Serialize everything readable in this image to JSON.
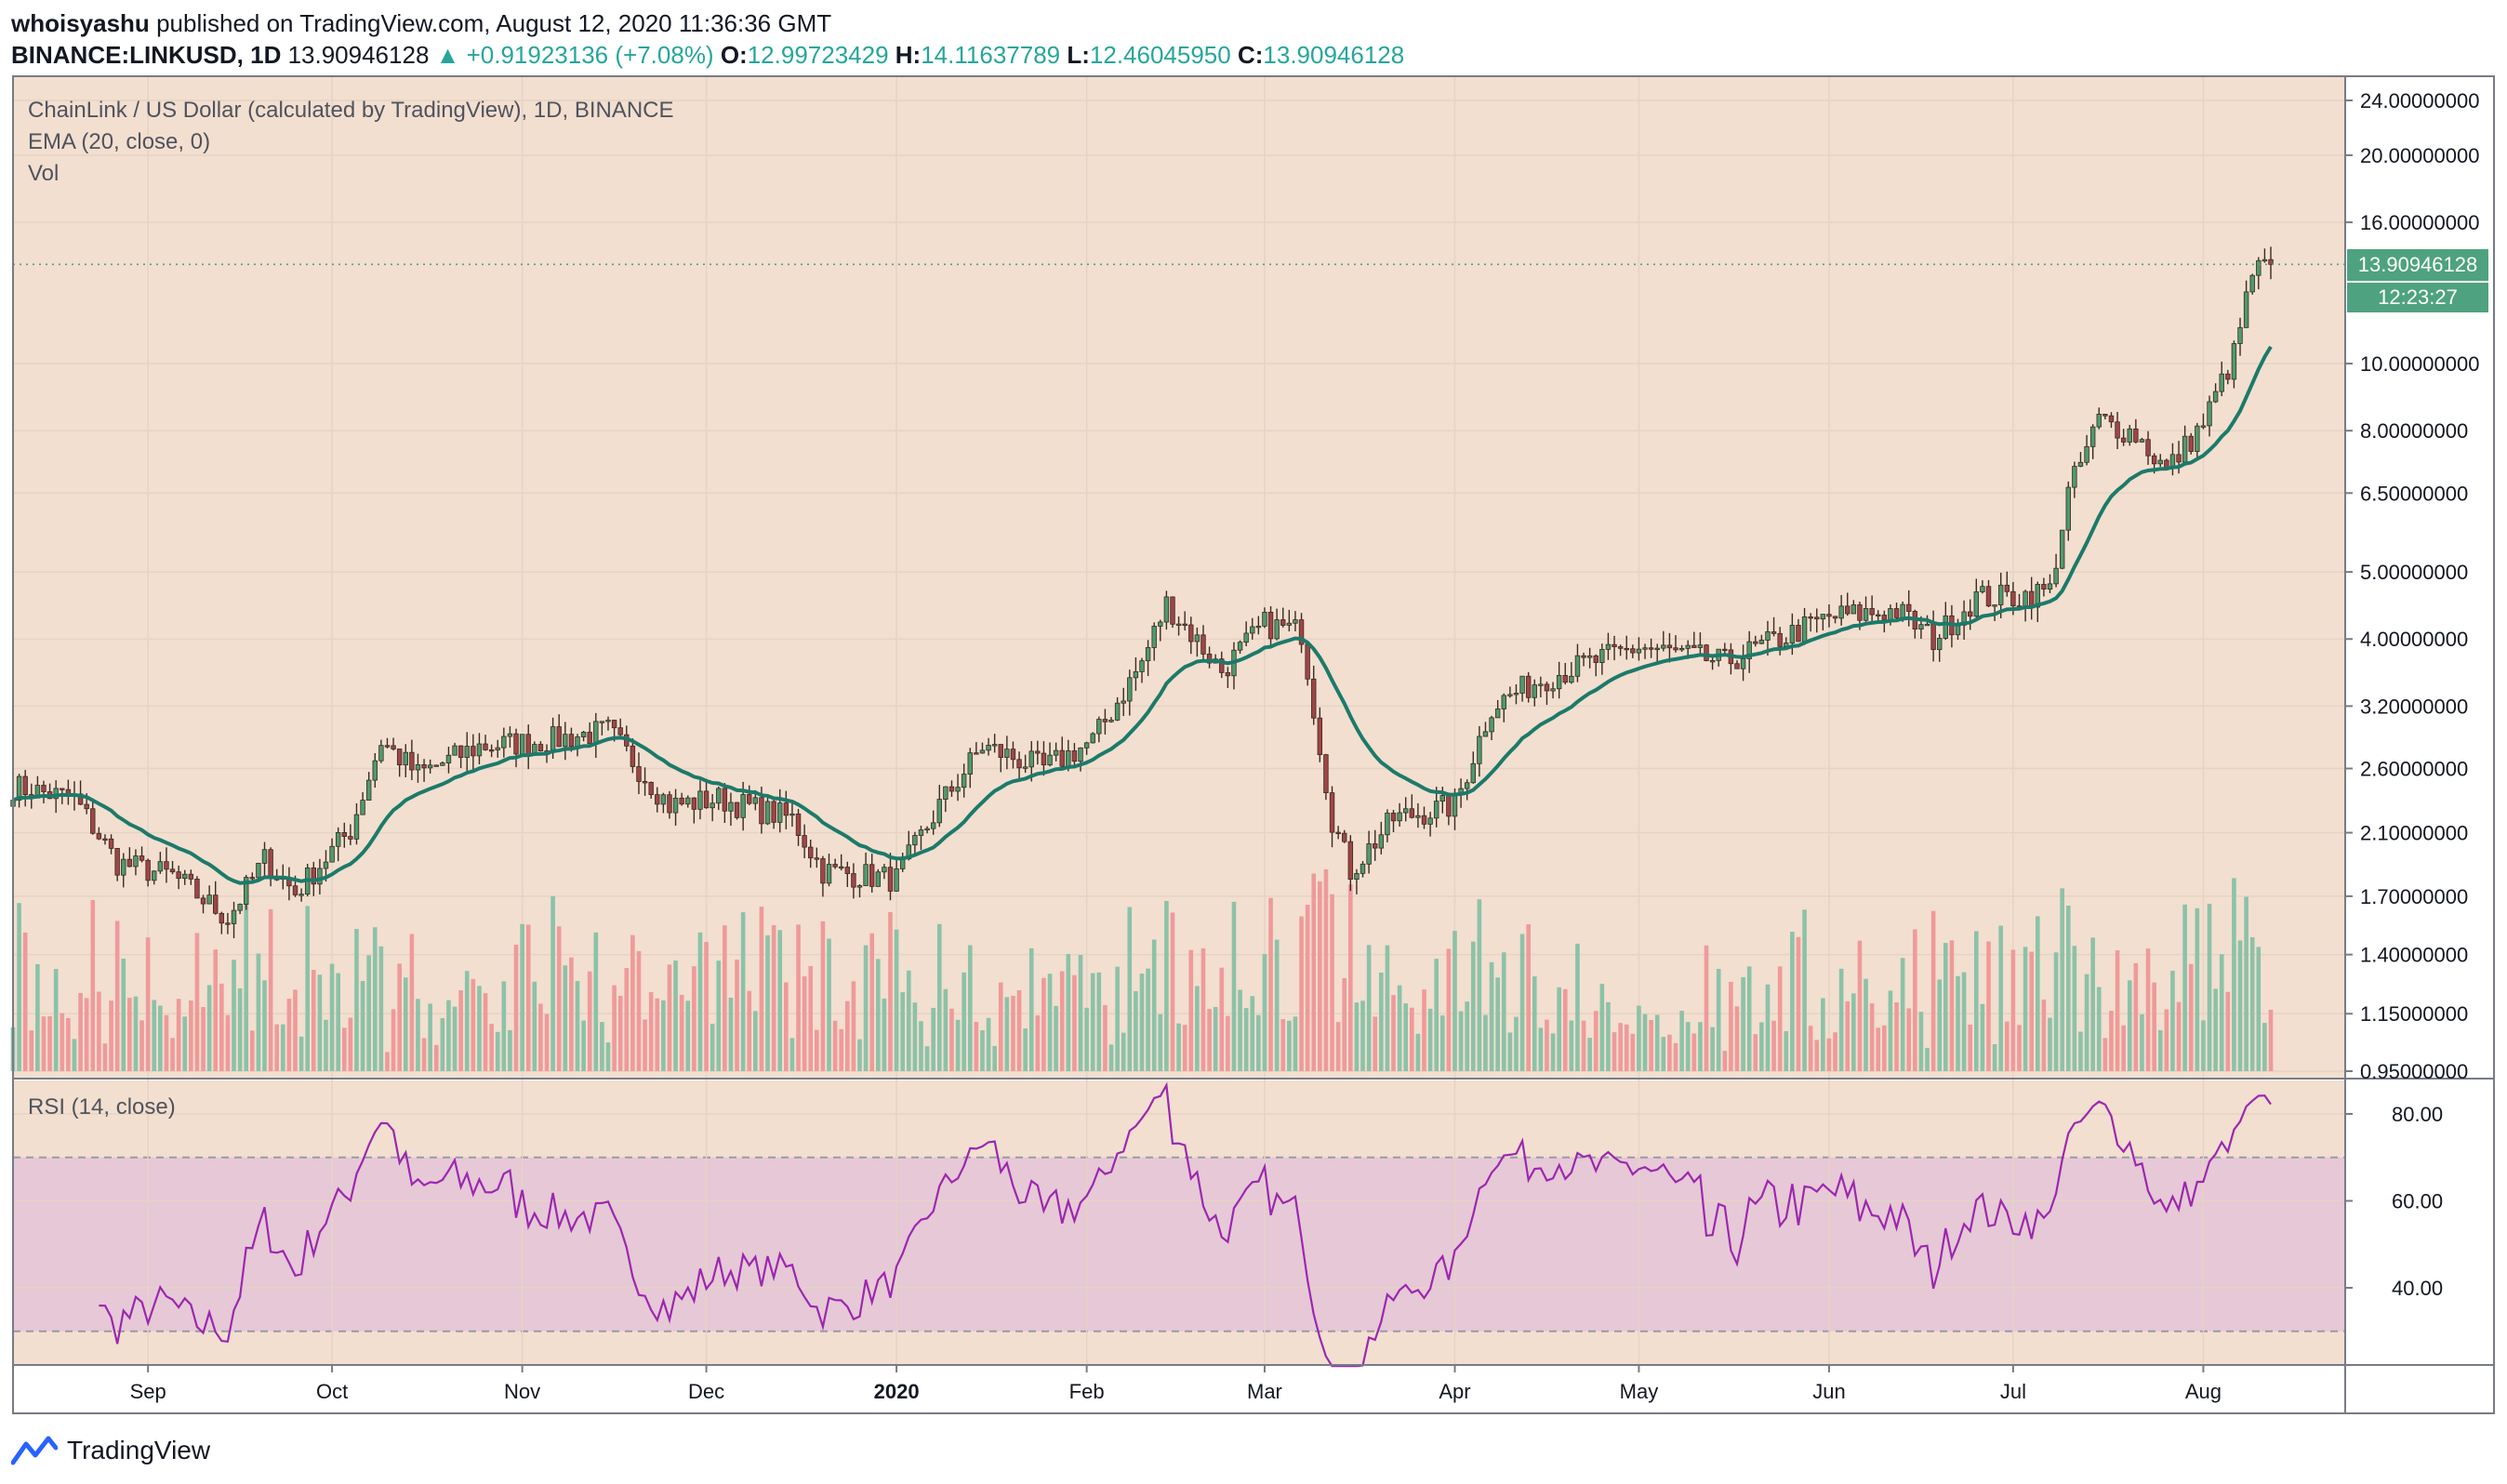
{
  "header": {
    "user": "whoisyashu",
    "published": "published on TradingView.com, August 12, 2020 11:36:36 GMT",
    "symbol": "BINANCE:LINKUSD, 1D",
    "last": "13.90946128",
    "change": "▲ +0.91923136 (+7.08%)",
    "o_label": "O:",
    "o_value": "12.99723429",
    "h_label": "H:",
    "h_value": "14.11637789",
    "l_label": "L:",
    "l_value": "12.46045950",
    "c_label": "C:",
    "c_value": "13.90946128"
  },
  "legend": {
    "title": "ChainLink / US Dollar (calculated by TradingView), 1D, BINANCE",
    "ema": "EMA (20, close, 0)",
    "vol": "Vol",
    "rsi": "RSI (14, close)"
  },
  "price_tag": "13.90946128",
  "countdown": "12:23:27",
  "brand": "TradingView",
  "colors": {
    "background": "#f2dfd0",
    "up": "#4f9a6e",
    "down": "#a04545",
    "ema": "#1c7a6a",
    "vol_up": "#8cc2a8",
    "vol_down": "#ef9a9a",
    "rsi_line": "#9c27b0",
    "rsi_band": "#e6c8d6"
  },
  "chart_data": [
    {
      "type": "candlestick",
      "title": "ChainLink / US Dollar (calculated by TradingView), 1D, BINANCE",
      "scale": "log",
      "y_ticks": [
        24,
        20,
        16,
        13.90946128,
        10,
        8,
        6.5,
        5,
        4,
        3.2,
        2.6,
        2.1,
        1.7,
        1.4,
        1.15,
        0.95
      ],
      "y_tick_labels": [
        "24.00000000",
        "20.00000000",
        "16.00000000",
        "13.90946128",
        "10.00000000",
        "8.00000000",
        "6.50000000",
        "5.00000000",
        "4.00000000",
        "3.20000000",
        "2.60000000",
        "2.10000000",
        "1.70000000",
        "1.40000000",
        "1.15000000",
        "0.95000000"
      ],
      "x_ticks": [
        "Sep",
        "Oct",
        "Nov",
        "Dec",
        "2020",
        "Feb",
        "Mar",
        "Apr",
        "May",
        "Jun",
        "Jul",
        "Aug"
      ],
      "x_tick_dates": [
        "2019-09-01",
        "2019-10-01",
        "2019-11-01",
        "2019-12-01",
        "2020-01-01",
        "2020-02-01",
        "2020-03-01",
        "2020-04-01",
        "2020-05-01",
        "2020-06-01",
        "2020-07-01",
        "2020-08-01"
      ],
      "x_range": [
        "2019-08-10",
        "2020-08-12"
      ],
      "close_anchors": [
        [
          "2019-08-10",
          2.45
        ],
        [
          "2019-08-20",
          2.35
        ],
        [
          "2019-08-27",
          1.9
        ],
        [
          "2019-09-05",
          1.82
        ],
        [
          "2019-09-14",
          1.58
        ],
        [
          "2019-09-20",
          1.92
        ],
        [
          "2019-09-25",
          1.72
        ],
        [
          "2019-10-04",
          2.12
        ],
        [
          "2019-10-09",
          2.85
        ],
        [
          "2019-10-15",
          2.55
        ],
        [
          "2019-10-25",
          2.8
        ],
        [
          "2019-11-05",
          2.85
        ],
        [
          "2019-11-15",
          2.95
        ],
        [
          "2019-11-25",
          2.3
        ],
        [
          "2019-12-03",
          2.35
        ],
        [
          "2019-12-15",
          2.2
        ],
        [
          "2019-12-20",
          1.85
        ],
        [
          "2020-01-01",
          1.8
        ],
        [
          "2020-01-08",
          2.3
        ],
        [
          "2020-01-15",
          2.8
        ],
        [
          "2020-01-25",
          2.6
        ],
        [
          "2020-02-02",
          2.85
        ],
        [
          "2020-02-10",
          3.7
        ],
        [
          "2020-02-14",
          4.5
        ],
        [
          "2020-02-23",
          3.6
        ],
        [
          "2020-03-01",
          4.2
        ],
        [
          "2020-03-07",
          4.1
        ],
        [
          "2020-03-12",
          2.2
        ],
        [
          "2020-03-15",
          1.85
        ],
        [
          "2020-03-22",
          2.2
        ],
        [
          "2020-04-01",
          2.3
        ],
        [
          "2020-04-07",
          3.2
        ],
        [
          "2020-04-15",
          3.5
        ],
        [
          "2020-05-01",
          3.9
        ],
        [
          "2020-05-15",
          3.7
        ],
        [
          "2020-06-01",
          4.3
        ],
        [
          "2020-06-12",
          4.4
        ],
        [
          "2020-06-18",
          4.0
        ],
        [
          "2020-06-25",
          4.6
        ],
        [
          "2020-07-01",
          4.6
        ],
        [
          "2020-07-07",
          4.7
        ],
        [
          "2020-07-10",
          6.5
        ],
        [
          "2020-07-15",
          8.3
        ],
        [
          "2020-07-21",
          7.9
        ],
        [
          "2020-07-26",
          7.0
        ],
        [
          "2020-08-01",
          8.2
        ],
        [
          "2020-08-06",
          10.3
        ],
        [
          "2020-08-09",
          13.5
        ],
        [
          "2020-08-12",
          13.90946128
        ]
      ]
    },
    {
      "type": "line",
      "title": "RSI (14, close)",
      "y_ticks": [
        80,
        60,
        40
      ],
      "y_tick_labels": [
        "80.00",
        "60.00",
        "40.00"
      ],
      "bands": [
        30,
        70
      ]
    }
  ]
}
